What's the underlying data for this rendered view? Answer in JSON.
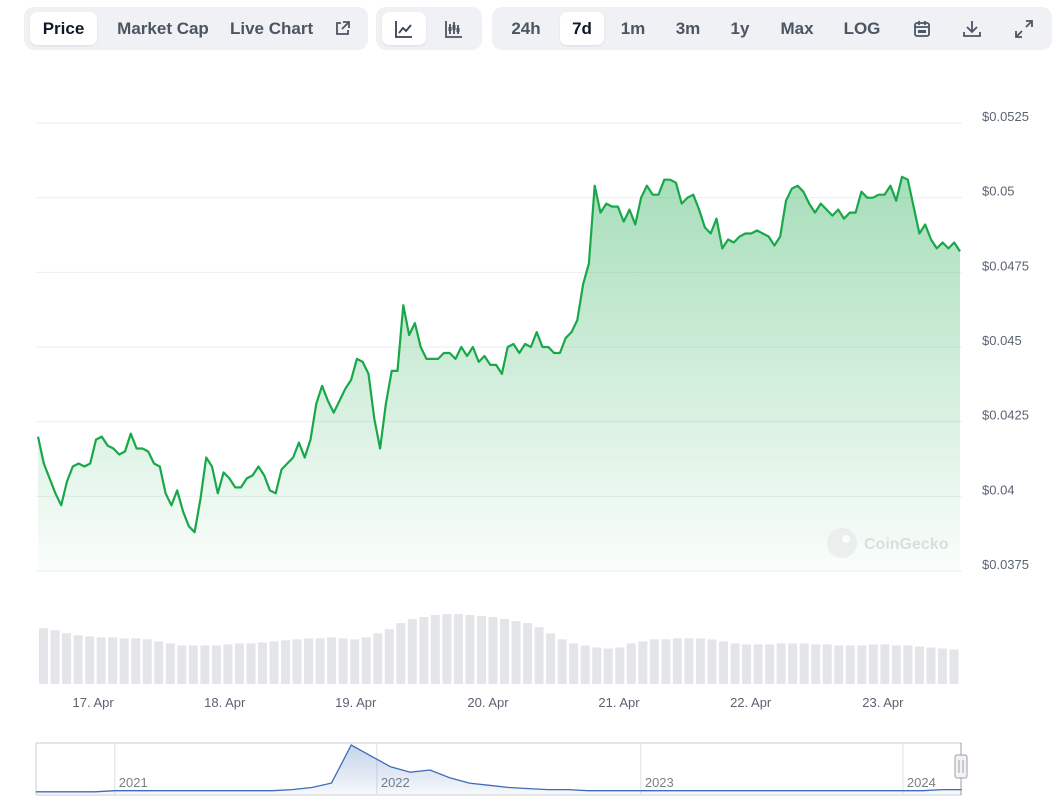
{
  "toolbar": {
    "tabs": [
      "Price",
      "Market Cap",
      "Live Chart"
    ],
    "active_tab": "Price",
    "ranges": [
      "24h",
      "7d",
      "1m",
      "3m",
      "1y",
      "Max",
      "LOG"
    ],
    "active_range": "7d"
  },
  "watermark": "CoinGecko",
  "chart_data": {
    "type": "line",
    "color": "#18a84a",
    "values": [
      0.042,
      0.0411,
      0.0406,
      0.0401,
      0.0397,
      0.0405,
      0.041,
      0.0411,
      0.041,
      0.0411,
      0.0419,
      0.042,
      0.0417,
      0.0416,
      0.0414,
      0.0415,
      0.0421,
      0.0416,
      0.0416,
      0.0415,
      0.0411,
      0.041,
      0.0401,
      0.0397,
      0.0402,
      0.0395,
      0.039,
      0.0388,
      0.0399,
      0.0413,
      0.041,
      0.0401,
      0.0408,
      0.0406,
      0.0403,
      0.0403,
      0.0406,
      0.0407,
      0.041,
      0.0407,
      0.0402,
      0.0401,
      0.0409,
      0.0411,
      0.0413,
      0.0418,
      0.0413,
      0.0419,
      0.0431,
      0.0437,
      0.0432,
      0.0428,
      0.0432,
      0.0436,
      0.0439,
      0.0446,
      0.0445,
      0.0441,
      0.0426,
      0.0416,
      0.0431,
      0.0442,
      0.0442,
      0.0464,
      0.0454,
      0.0458,
      0.045,
      0.0446,
      0.0446,
      0.0446,
      0.0448,
      0.0448,
      0.0446,
      0.045,
      0.0447,
      0.045,
      0.0445,
      0.0447,
      0.0444,
      0.0444,
      0.0441,
      0.045,
      0.0451,
      0.0448,
      0.0451,
      0.045,
      0.0455,
      0.045,
      0.045,
      0.0448,
      0.0448,
      0.0453,
      0.0455,
      0.0459,
      0.0471,
      0.0478,
      0.0504,
      0.0495,
      0.0498,
      0.0497,
      0.0497,
      0.0492,
      0.0496,
      0.0491,
      0.05,
      0.0504,
      0.0501,
      0.0501,
      0.0506,
      0.0506,
      0.0505,
      0.0498,
      0.05,
      0.0501,
      0.0496,
      0.049,
      0.0488,
      0.0493,
      0.0483,
      0.0486,
      0.0485,
      0.0487,
      0.0488,
      0.0488,
      0.0489,
      0.0488,
      0.0487,
      0.0484,
      0.0487,
      0.0499,
      0.0503,
      0.0504,
      0.0502,
      0.0498,
      0.0495,
      0.0498,
      0.0496,
      0.0494,
      0.0496,
      0.0493,
      0.0495,
      0.0495,
      0.0502,
      0.05,
      0.05,
      0.0501,
      0.0501,
      0.0504,
      0.0499,
      0.0507,
      0.0506,
      0.0497,
      0.0488,
      0.0491,
      0.0486,
      0.0483,
      0.0485,
      0.0483,
      0.0485,
      0.0482
    ],
    "xlim": [
      0,
      159
    ],
    "xticks": [
      {
        "value": 9.5,
        "label": "17. Apr"
      },
      {
        "value": 32.2,
        "label": "18. Apr"
      },
      {
        "value": 54.8,
        "label": "19. Apr"
      },
      {
        "value": 77.6,
        "label": "20. Apr"
      },
      {
        "value": 100.2,
        "label": "21. Apr"
      },
      {
        "value": 122.9,
        "label": "22. Apr"
      },
      {
        "value": 145.7,
        "label": "23. Apr"
      }
    ],
    "ylim": [
      0.0375,
      0.0525
    ],
    "yticks": [
      {
        "value": 0.0375,
        "label": "$0.0375"
      },
      {
        "value": 0.04,
        "label": "$0.04"
      },
      {
        "value": 0.0425,
        "label": "$0.0425"
      },
      {
        "value": 0.045,
        "label": "$0.045"
      },
      {
        "value": 0.0475,
        "label": "$0.0475"
      },
      {
        "value": 0.05,
        "label": "$0.05"
      },
      {
        "value": 0.0525,
        "label": "$0.0525"
      }
    ],
    "grid": true,
    "volume": {
      "color": "#e4e5e8",
      "values": [
        55,
        53,
        50,
        48,
        47,
        46,
        46,
        45,
        45,
        44,
        42,
        40,
        38,
        38,
        38,
        38,
        39,
        40,
        40,
        41,
        42,
        43,
        44,
        45,
        45,
        46,
        45,
        44,
        46,
        50,
        54,
        60,
        64,
        66,
        68,
        69,
        69,
        68,
        67,
        66,
        64,
        62,
        60,
        56,
        50,
        44,
        40,
        38,
        36,
        35,
        36,
        40,
        42,
        44,
        44,
        45,
        45,
        45,
        44,
        42,
        40,
        39,
        39,
        39,
        40,
        40,
        40,
        39,
        39,
        38,
        38,
        38,
        39,
        39,
        38,
        38,
        37,
        36,
        35,
        34
      ]
    }
  },
  "navigator": {
    "color": "#3f6cb8",
    "values": [
      2,
      2,
      2,
      2,
      3,
      3,
      3,
      3,
      3,
      3,
      3,
      3,
      3,
      4,
      6,
      10,
      45,
      35,
      25,
      20,
      22,
      15,
      10,
      8,
      6,
      5,
      4,
      4,
      3,
      3,
      3,
      3,
      3,
      3,
      3,
      3,
      3,
      3,
      3,
      3,
      3,
      3,
      3,
      3,
      3,
      3,
      4,
      4
    ],
    "xlim": [
      0,
      47
    ],
    "xticks": [
      {
        "value": 4.0,
        "label": "2021"
      },
      {
        "value": 17.3,
        "label": "2022"
      },
      {
        "value": 30.7,
        "label": "2023"
      },
      {
        "value": 44.0,
        "label": "2024"
      }
    ]
  }
}
